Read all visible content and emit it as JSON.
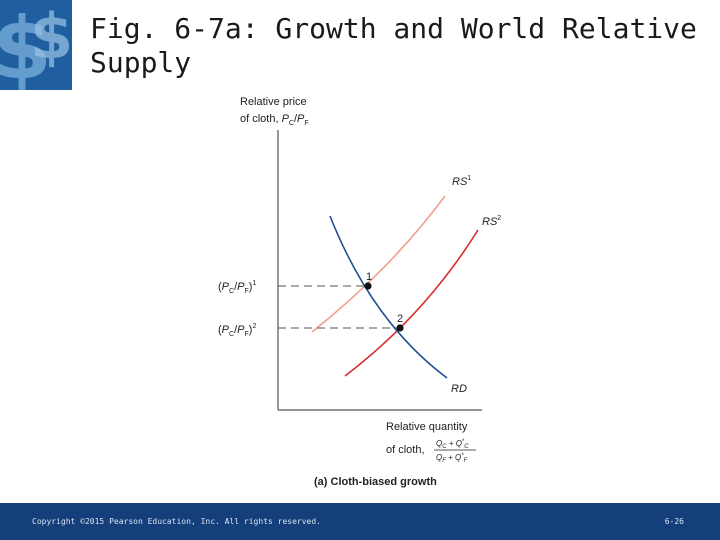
{
  "slide": {
    "title_line1": "Fig. 6-7a: Growth and World Relative",
    "title_line2": "Supply",
    "footer": {
      "copyright": "Copyright ©2015 Pearson Education, Inc. All rights reserved.",
      "page": "6-26"
    },
    "colors": {
      "footer_bar": "#143f7a",
      "logo_bg": "#1f5f9f",
      "rs1": "#f0a08c",
      "rs2": "#d62d2d",
      "rd": "#1e4f91"
    },
    "logo_icon": "dollar-logo-icon"
  },
  "diagram": {
    "y_axis_label_line1": "Relative price",
    "y_axis_label_line2": "of cloth, PC/PF",
    "x_axis_label_line1": "Relative quantity",
    "x_axis_label_line2": "of cloth,",
    "x_axis_fraction_num": "QC + Q*C",
    "x_axis_fraction_den": "QF + Q*F",
    "curves": [
      {
        "name": "RS1",
        "label": "RS",
        "sup": "1"
      },
      {
        "name": "RS2",
        "label": "RS",
        "sup": "2"
      },
      {
        "name": "RD",
        "label": "RD",
        "sup": ""
      }
    ],
    "points": [
      {
        "label": "1",
        "y_label": "(PC/PF)",
        "y_sup": "1"
      },
      {
        "label": "2",
        "y_label": "(PC/PF)",
        "y_sup": "2"
      }
    ],
    "caption": "(a) Cloth-biased growth"
  }
}
